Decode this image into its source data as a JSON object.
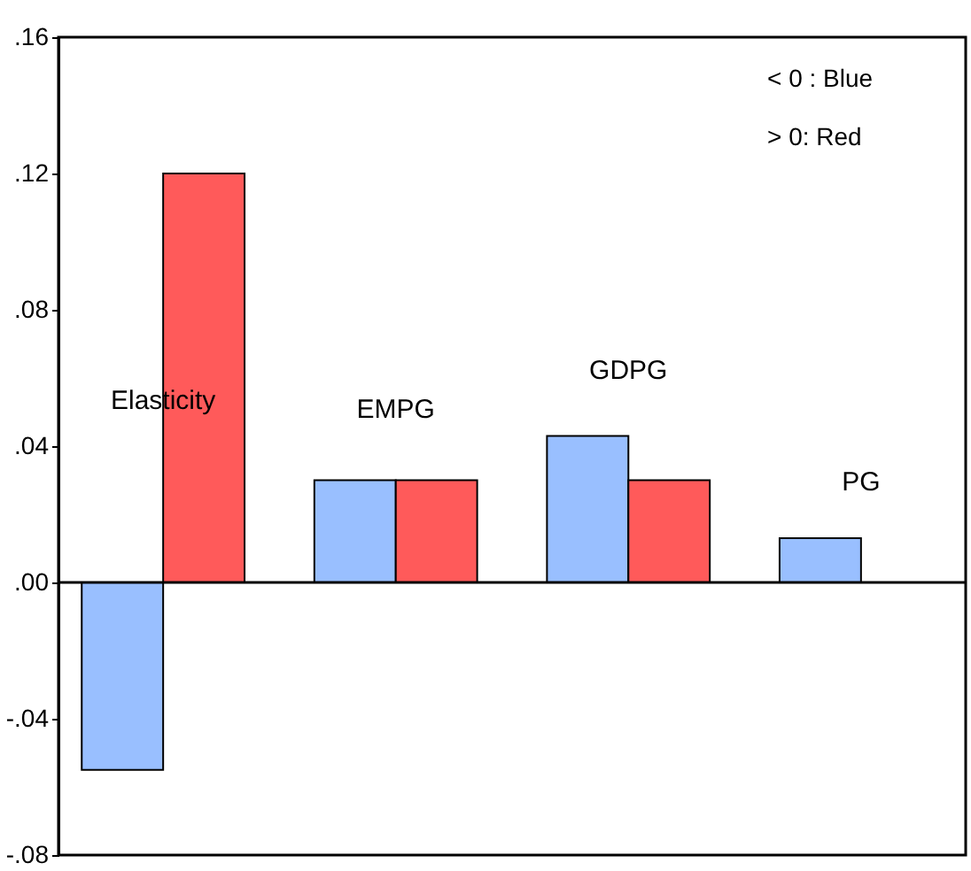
{
  "chart_data": {
    "type": "bar",
    "categories": [
      "Elasticity",
      "EMPG",
      "GDPG",
      "PG"
    ],
    "series": [
      {
        "color": "#99bfff",
        "values": [
          -0.055,
          0.03,
          0.043,
          0.013
        ]
      },
      {
        "color": "#ff5a5a",
        "values": [
          0.12,
          0.03,
          0.03,
          null
        ]
      }
    ],
    "ylim": [
      -0.08,
      0.16
    ],
    "yticks": [
      {
        "value": -0.08,
        "label": "-.08"
      },
      {
        "value": -0.04,
        "label": "-.04"
      },
      {
        "value": 0,
        "label": ".00"
      },
      {
        "value": 0.04,
        "label": ".04"
      },
      {
        "value": 0.08,
        "label": ".08"
      },
      {
        "value": 0.12,
        "label": ".12"
      },
      {
        "value": 0.16,
        "label": ".16"
      }
    ],
    "ref_lines": [
      {
        "axis": "y",
        "value": 0,
        "color": "#000000"
      }
    ],
    "annotations": [
      "< 0 : Blue",
      "> 0: Red"
    ],
    "grid": false,
    "legend": false
  }
}
